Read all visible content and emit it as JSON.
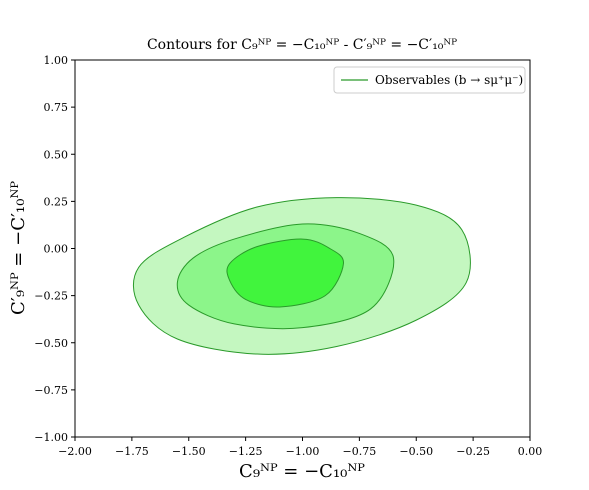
{
  "chart_data": {
    "type": "contour",
    "title": "Contours for C₉ᴺᴾ = −C₁₀ᴺᴾ - C′₉ᴺᴾ = −C′₁₀ᴺᴾ",
    "xlabel": "C₉ᴺᴾ = −C₁₀ᴺᴾ",
    "ylabel": "C′₉ᴺᴾ = −C′₁₀ᴺᴾ",
    "xlim": [
      -2.0,
      0.0
    ],
    "ylim": [
      -1.0,
      1.0
    ],
    "x_ticks": [
      "−2.00",
      "−1.75",
      "−1.50",
      "−1.25",
      "−1.00",
      "−0.75",
      "−0.50",
      "−0.25",
      "0.00"
    ],
    "y_ticks": [
      "−1.00",
      "−0.75",
      "−0.50",
      "−0.25",
      "0.00",
      "0.25",
      "0.50",
      "0.75",
      "1.00"
    ],
    "legend": {
      "label": "Observables (b → sμ⁺μ⁻)",
      "position": "upper right"
    },
    "grid": false,
    "series": [
      {
        "name": "Observables (b → sμ⁺μ⁻)",
        "contours": [
          {
            "level": 3,
            "fill": "#c4f7c0",
            "points": [
              [
                -1.55,
                -0.48
              ],
              [
                -1.2,
                -0.56
              ],
              [
                -0.85,
                -0.52
              ],
              [
                -0.5,
                -0.38
              ],
              [
                -0.28,
                -0.18
              ],
              [
                -0.3,
                0.1
              ],
              [
                -0.5,
                0.23
              ],
              [
                -0.85,
                0.27
              ],
              [
                -1.2,
                0.22
              ],
              [
                -1.52,
                0.06
              ],
              [
                -1.72,
                -0.1
              ],
              [
                -1.72,
                -0.3
              ]
            ]
          },
          {
            "level": 2,
            "fill": "#8cf58a",
            "points": [
              [
                -1.5,
                -0.3
              ],
              [
                -1.3,
                -0.4
              ],
              [
                -1.0,
                -0.42
              ],
              [
                -0.7,
                -0.32
              ],
              [
                -0.6,
                -0.05
              ],
              [
                -0.75,
                0.08
              ],
              [
                -1.0,
                0.13
              ],
              [
                -1.3,
                0.05
              ],
              [
                -1.48,
                -0.05
              ],
              [
                -1.55,
                -0.18
              ]
            ]
          },
          {
            "level": 1,
            "fill": "#41f43d",
            "points": [
              [
                -1.32,
                -0.17
              ],
              [
                -1.25,
                -0.27
              ],
              [
                -1.1,
                -0.31
              ],
              [
                -0.9,
                -0.25
              ],
              [
                -0.82,
                -0.08
              ],
              [
                -0.88,
                0.0
              ],
              [
                -1.0,
                0.05
              ],
              [
                -1.2,
                0.01
              ],
              [
                -1.32,
                -0.08
              ]
            ]
          }
        ],
        "stroke": "#2a9a2a"
      }
    ]
  }
}
